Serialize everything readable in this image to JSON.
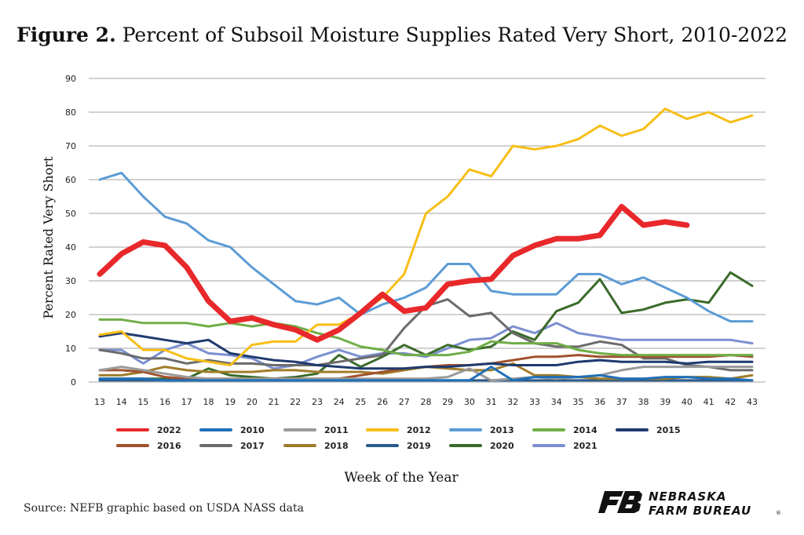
{
  "title": {
    "prefix": "Figure 2.",
    "text": "Percent of Subsoil Moisture Supplies Rated Very Short, 2010-2022"
  },
  "source": "Source: NEFB graphic based on USDA NASS data",
  "logo": {
    "line1": "NEBRASKA",
    "line2": "FARM BUREAU",
    "mark": "®"
  },
  "chart_data": {
    "type": "line",
    "title": "Percent of Subsoil Moisture Supplies Rated Very Short, 2010-2022",
    "xlabel": "Week of the Year",
    "ylabel": "Percent Rated Very Short",
    "ylim": [
      0,
      90
    ],
    "yticks": [
      0,
      10,
      20,
      30,
      40,
      50,
      60,
      70,
      80,
      90
    ],
    "grid": true,
    "legend_position": "bottom",
    "x": [
      13,
      14,
      15,
      16,
      17,
      18,
      19,
      20,
      21,
      22,
      23,
      24,
      25,
      26,
      27,
      28,
      29,
      30,
      31,
      32,
      33,
      34,
      35,
      36,
      37,
      38,
      39,
      40,
      41,
      42,
      43
    ],
    "series": [
      {
        "name": "2022",
        "color": "#e8282b",
        "width": 7,
        "values": [
          32,
          38,
          41.5,
          40.5,
          34,
          24,
          18,
          19,
          17,
          15.5,
          12.5,
          15.5,
          20.5,
          26,
          21,
          22,
          29,
          30,
          30.5,
          37.5,
          40.5,
          42.5,
          42.5,
          43.5,
          52,
          46.5,
          47.5,
          46.5,
          null,
          null,
          null
        ]
      },
      {
        "name": "2010",
        "color": "#1f6fb8",
        "width": 3,
        "values": [
          1,
          1,
          1,
          0.5,
          0.5,
          0.5,
          0.5,
          0.5,
          0.5,
          0.5,
          0.5,
          0.5,
          0.5,
          0.5,
          0.5,
          0.5,
          0.5,
          0.5,
          4.5,
          0.5,
          1.5,
          1.5,
          1.5,
          2,
          1,
          1,
          1.5,
          1.5,
          1,
          1,
          0.5
        ]
      },
      {
        "name": "2011",
        "color": "#9a9a9a",
        "width": 3,
        "values": [
          3.5,
          4.5,
          3.5,
          2.5,
          1.5,
          1,
          1,
          1,
          1,
          1,
          1,
          1,
          1,
          1,
          1,
          1,
          1.5,
          4,
          0.5,
          1,
          1.5,
          1,
          1.5,
          2,
          3.5,
          4.5,
          4.5,
          4.5,
          4.5,
          4.5,
          4.5
        ]
      },
      {
        "name": "2012",
        "color": "#f7be16",
        "width": 3,
        "values": [
          14,
          15,
          9.5,
          9.5,
          7,
          6,
          5,
          11,
          12,
          12,
          17,
          17,
          20.5,
          25,
          32,
          50,
          55,
          63,
          61,
          70,
          69,
          70,
          72,
          76,
          73,
          75,
          81,
          78,
          80,
          77,
          79
        ]
      },
      {
        "name": "2013",
        "color": "#5b9bd5",
        "width": 3,
        "values": [
          60,
          62,
          55,
          49,
          47,
          42,
          40,
          34,
          29,
          24,
          23,
          25,
          20,
          23,
          25,
          28,
          35,
          35,
          27,
          26,
          26,
          26,
          32,
          32,
          29,
          31,
          28,
          25,
          21,
          18,
          18
        ]
      },
      {
        "name": "2014",
        "color": "#70ad47",
        "width": 3,
        "values": [
          18.5,
          18.5,
          17.5,
          17.5,
          17.5,
          16.5,
          17.5,
          16.5,
          17.5,
          16.5,
          14.5,
          13,
          10.5,
          9.5,
          8,
          8,
          8,
          9,
          12,
          11.5,
          11.5,
          11.5,
          9.5,
          8.5,
          8,
          8,
          8,
          8,
          8,
          8,
          8
        ]
      },
      {
        "name": "2015",
        "color": "#1f3a6e",
        "width": 3,
        "values": [
          13.5,
          14.5,
          13.5,
          12.5,
          11.5,
          12.5,
          8.5,
          7.5,
          6.5,
          6,
          5,
          4.5,
          4,
          4,
          4,
          4.5,
          4.5,
          5,
          5.5,
          5,
          5,
          5,
          6,
          6.5,
          6,
          6,
          6,
          5.5,
          6,
          6,
          6
        ]
      },
      {
        "name": "2016",
        "color": "#a0522d",
        "width": 3,
        "values": [
          3.5,
          3.5,
          3,
          1.5,
          1,
          1,
          1,
          1,
          1,
          1,
          1,
          1,
          2,
          3,
          4,
          4.5,
          5,
          5,
          5.5,
          6.5,
          7.5,
          7.5,
          8,
          7.5,
          7.5,
          7.5,
          7.5,
          7.5,
          7.5,
          8,
          7.5
        ]
      },
      {
        "name": "2017",
        "color": "#6b6b6b",
        "width": 3,
        "values": [
          9.5,
          8.5,
          7,
          7,
          5.5,
          6.5,
          5.5,
          5.5,
          5,
          5,
          5,
          6,
          7,
          8,
          16,
          22.5,
          24.5,
          19.5,
          20.5,
          14.5,
          11.5,
          10.5,
          10.5,
          12,
          11,
          7,
          7,
          5,
          4.5,
          3.5,
          3.5
        ]
      },
      {
        "name": "2018",
        "color": "#a07c2a",
        "width": 3,
        "values": [
          2,
          2,
          3,
          4.5,
          3.5,
          3,
          3,
          3,
          3.5,
          3.5,
          3,
          3,
          3,
          2.5,
          3.5,
          4.5,
          4,
          3.5,
          3.5,
          5.5,
          2,
          2,
          1.5,
          1,
          1,
          1,
          1,
          1.5,
          1.5,
          1,
          2
        ]
      },
      {
        "name": "2019",
        "color": "#2a5b8c",
        "width": 3,
        "values": [
          0.5,
          0.5,
          0.5,
          0.5,
          0.5,
          0.5,
          0.5,
          0.5,
          0.5,
          0.5,
          0.5,
          0.5,
          0.5,
          0.5,
          0.5,
          0.5,
          0.5,
          0.5,
          0.5,
          0.5,
          0.5,
          0.5,
          0.5,
          0.5,
          0.5,
          0.5,
          0.5,
          0.5,
          0.5,
          0.5,
          0.5
        ]
      },
      {
        "name": "2020",
        "color": "#3a6b2a",
        "width": 3,
        "values": [
          1,
          1,
          1,
          1,
          1,
          4,
          2,
          1.5,
          1,
          1.5,
          2.5,
          8,
          4.5,
          7.5,
          11,
          8,
          11,
          9.5,
          10.5,
          15,
          12.5,
          21,
          23.5,
          30.5,
          20.5,
          21.5,
          23.5,
          24.5,
          23.5,
          32.5,
          28.5
        ]
      },
      {
        "name": "2021",
        "color": "#7b8fd0",
        "width": 3,
        "values": [
          9.5,
          9.5,
          5.5,
          9.5,
          11.5,
          8.5,
          8,
          7,
          4,
          5,
          7.5,
          9.5,
          7.5,
          8.5,
          8.5,
          7.5,
          10,
          12.5,
          13,
          16.5,
          14.5,
          17.5,
          14.5,
          13.5,
          12.5,
          12.5,
          12.5,
          12.5,
          12.5,
          12.5,
          11.5
        ]
      }
    ]
  }
}
